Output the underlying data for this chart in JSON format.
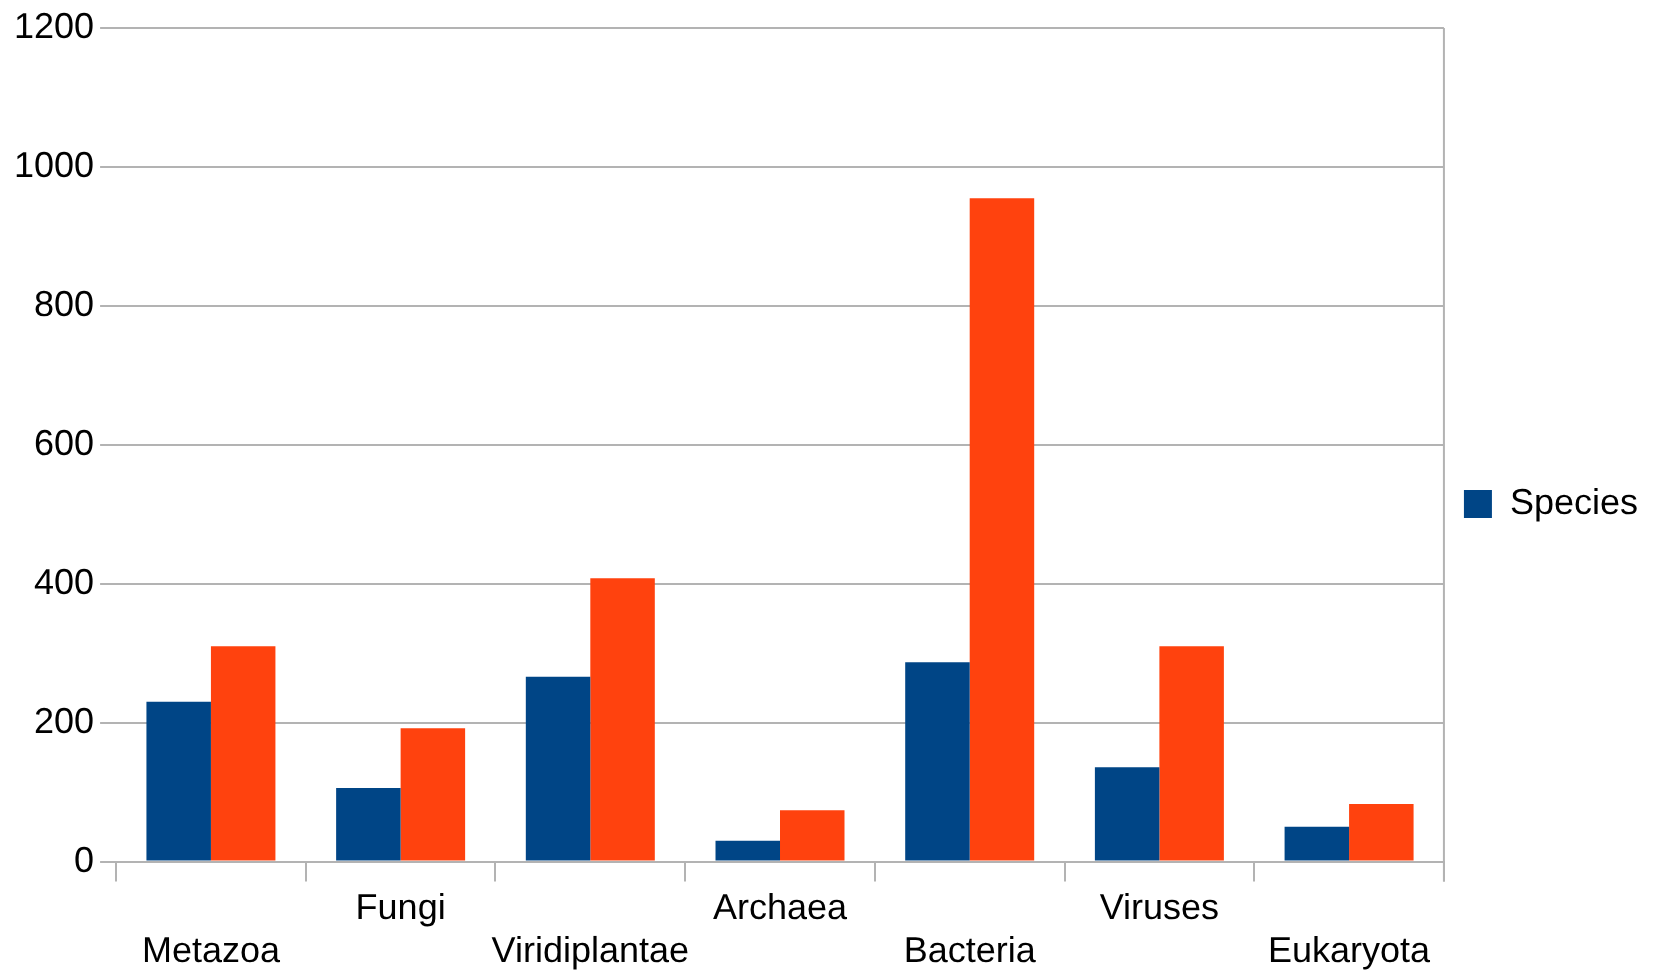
{
  "chart_data": {
    "type": "bar",
    "categories": [
      "Metazoa",
      "Fungi",
      "Viridiplantae",
      "Archaea",
      "Bacteria",
      "Viruses",
      "Eukaryota"
    ],
    "series": [
      {
        "name": "Species",
        "color": "#004586",
        "values": [
          230,
          106,
          266,
          30,
          287,
          136,
          50
        ]
      },
      {
        "color": "#ff420e",
        "values": [
          310,
          192,
          408,
          74,
          955,
          310,
          83
        ]
      }
    ],
    "ylim": [
      0,
      1200
    ],
    "yticks": [
      0,
      200,
      400,
      600,
      800,
      1000,
      1200
    ],
    "grid": "y",
    "legend": "right"
  }
}
